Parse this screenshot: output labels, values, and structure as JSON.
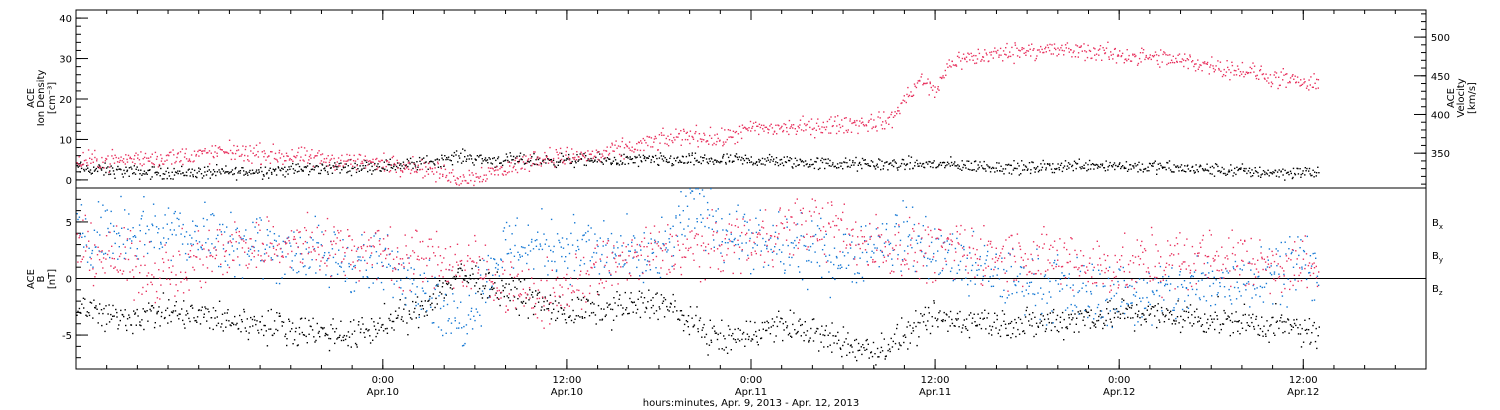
{
  "colors": {
    "black": "#000000",
    "pink": "#e8325f",
    "blue": "#1478d4"
  },
  "xaxis": {
    "start": "2013-04-09T04:00",
    "end": "2013-04-12T20:00",
    "ticks": [
      {
        "time": "2013-04-10T00:00",
        "label": "0:00",
        "date": "Apr.10"
      },
      {
        "time": "2013-04-10T12:00",
        "label": "12:00",
        "date": "Apr.10"
      },
      {
        "time": "2013-04-11T00:00",
        "label": "0:00",
        "date": "Apr.11"
      },
      {
        "time": "2013-04-11T12:00",
        "label": "12:00",
        "date": "Apr.11"
      },
      {
        "time": "2013-04-12T00:00",
        "label": "0:00",
        "date": "Apr.12"
      },
      {
        "time": "2013-04-12T12:00",
        "label": "12:00",
        "date": "Apr.12"
      }
    ],
    "caption": "hours:minutes, Apr.  9, 2013 - Apr. 12, 2013"
  },
  "chart_data": [
    {
      "type": "scatter",
      "panel": "top",
      "ylabel_lines": [
        "ACE",
        "Ion Density",
        "[cm⁻³]"
      ],
      "ylim": [
        -2,
        42
      ],
      "yticks": [
        0,
        10,
        20,
        30,
        40
      ],
      "y2label_lines": [
        "ACE",
        "Velocity",
        "[km/s]"
      ],
      "y2lim": [
        305,
        535
      ],
      "y2ticks": [
        350,
        400,
        450,
        500
      ],
      "series": [
        {
          "axis": "left",
          "color": "#000000",
          "keyframes": [
            [
              "2013-04-09T04:00",
              3
            ],
            [
              "2013-04-09T08:00",
              2
            ],
            [
              "2013-04-09T14:00",
              2
            ],
            [
              "2013-04-09T20:00",
              3
            ],
            [
              "2013-04-10T02:00",
              4
            ],
            [
              "2013-04-10T05:00",
              6
            ],
            [
              "2013-04-10T07:00",
              5
            ],
            [
              "2013-04-10T12:00",
              5
            ],
            [
              "2013-04-10T18:00",
              5
            ],
            [
              "2013-04-11T00:00",
              5
            ],
            [
              "2013-04-11T06:00",
              4
            ],
            [
              "2013-04-11T12:00",
              4
            ],
            [
              "2013-04-11T18:00",
              3
            ],
            [
              "2013-04-11T22:00",
              4
            ],
            [
              "2013-04-12T04:00",
              3
            ],
            [
              "2013-04-12T10:00",
              2
            ],
            [
              "2013-04-12T13:00",
              2
            ]
          ]
        },
        {
          "axis": "right",
          "color": "#e8325f",
          "keyframes": [
            [
              "2013-04-09T04:00",
              340
            ],
            [
              "2013-04-09T10:00",
              345
            ],
            [
              "2013-04-09T14:00",
              353
            ],
            [
              "2013-04-09T20:00",
              343
            ],
            [
              "2013-04-10T02:00",
              335
            ],
            [
              "2013-04-10T05:00",
              318
            ],
            [
              "2013-04-10T08:00",
              330
            ],
            [
              "2013-04-10T10:00",
              345
            ],
            [
              "2013-04-10T14:00",
              348
            ],
            [
              "2013-04-10T16:00",
              358
            ],
            [
              "2013-04-10T20:00",
              375
            ],
            [
              "2013-04-10T22:00",
              368
            ],
            [
              "2013-04-11T00:00",
              382
            ],
            [
              "2013-04-11T04:00",
              385
            ],
            [
              "2013-04-11T09:00",
              392
            ],
            [
              "2013-04-11T10:00",
              420
            ],
            [
              "2013-04-11T11:00",
              445
            ],
            [
              "2013-04-11T12:00",
              430
            ],
            [
              "2013-04-11T13:00",
              470
            ],
            [
              "2013-04-11T18:00",
              485
            ],
            [
              "2013-04-11T22:00",
              482
            ],
            [
              "2013-04-12T04:00",
              470
            ],
            [
              "2013-04-12T08:00",
              458
            ],
            [
              "2013-04-12T10:00",
              448
            ],
            [
              "2013-04-12T13:00",
              437
            ]
          ]
        }
      ]
    },
    {
      "type": "scatter",
      "panel": "bottom",
      "ylabel_lines": [
        "ACE",
        "B",
        "[nT]"
      ],
      "ylim": [
        -8,
        8
      ],
      "yticks": [
        -5,
        0,
        5
      ],
      "zero_line": true,
      "series": [
        {
          "name": "Bx",
          "color": "#000000",
          "keyframes": [
            [
              "2013-04-09T04:00",
              -2
            ],
            [
              "2013-04-09T06:00",
              -3.5
            ],
            [
              "2013-04-09T10:00",
              -3
            ],
            [
              "2013-04-09T16:00",
              -4
            ],
            [
              "2013-04-09T22:00",
              -5
            ],
            [
              "2013-04-10T02:00",
              -3
            ],
            [
              "2013-04-10T05:00",
              0.5
            ],
            [
              "2013-04-10T08:00",
              -1
            ],
            [
              "2013-04-10T12:00",
              -3
            ],
            [
              "2013-04-10T18:00",
              -2
            ],
            [
              "2013-04-10T22:00",
              -5.5
            ],
            [
              "2013-04-11T02:00",
              -4
            ],
            [
              "2013-04-11T08:00",
              -6.5
            ],
            [
              "2013-04-11T12:00",
              -3.5
            ],
            [
              "2013-04-11T18:00",
              -4
            ],
            [
              "2013-04-12T00:00",
              -3
            ],
            [
              "2013-04-12T06:00",
              -3.5
            ],
            [
              "2013-04-12T12:00",
              -4.5
            ],
            [
              "2013-04-12T13:00",
              -5
            ]
          ]
        },
        {
          "name": "By",
          "color": "#1478d4",
          "keyframes": [
            [
              "2013-04-09T04:00",
              4
            ],
            [
              "2013-04-09T10:00",
              4.5
            ],
            [
              "2013-04-09T16:00",
              3
            ],
            [
              "2013-04-09T22:00",
              1.5
            ],
            [
              "2013-04-10T02:00",
              0.5
            ],
            [
              "2013-04-10T05:00",
              -4
            ],
            [
              "2013-04-10T08:00",
              3
            ],
            [
              "2013-04-10T12:00",
              3
            ],
            [
              "2013-04-10T18:00",
              1.5
            ],
            [
              "2013-04-10T20:00",
              6.5
            ],
            [
              "2013-04-11T00:00",
              3
            ],
            [
              "2013-04-11T06:00",
              2
            ],
            [
              "2013-04-11T10:00",
              4
            ],
            [
              "2013-04-11T14:00",
              1
            ],
            [
              "2013-04-11T20:00",
              -1
            ],
            [
              "2013-04-12T02:00",
              -1.5
            ],
            [
              "2013-04-12T08:00",
              0
            ],
            [
              "2013-04-12T12:00",
              2
            ],
            [
              "2013-04-12T13:00",
              -0.5
            ]
          ]
        },
        {
          "name": "Bz",
          "color": "#e8325f",
          "keyframes": [
            [
              "2013-04-09T04:00",
              3
            ],
            [
              "2013-04-09T08:00",
              1
            ],
            [
              "2013-04-09T10:00",
              0.5
            ],
            [
              "2013-04-09T14:00",
              3
            ],
            [
              "2013-04-09T20:00",
              3
            ],
            [
              "2013-04-10T02:00",
              2
            ],
            [
              "2013-04-10T06:00",
              1
            ],
            [
              "2013-04-10T10:00",
              -2
            ],
            [
              "2013-04-10T16:00",
              2
            ],
            [
              "2013-04-10T22:00",
              3
            ],
            [
              "2013-04-11T04:00",
              5
            ],
            [
              "2013-04-11T08:00",
              3
            ],
            [
              "2013-04-11T12:00",
              2.5
            ],
            [
              "2013-04-11T18:00",
              2
            ],
            [
              "2013-04-12T00:00",
              1
            ],
            [
              "2013-04-12T06:00",
              2
            ],
            [
              "2013-04-12T12:00",
              1
            ],
            [
              "2013-04-12T13:00",
              1
            ]
          ]
        }
      ],
      "legend": [
        {
          "base": "B",
          "sub": "x",
          "color": "#000000"
        },
        {
          "base": "B",
          "sub": "y",
          "color": "#1478d4"
        },
        {
          "base": "B",
          "sub": "z",
          "color": "#e8325f"
        }
      ]
    }
  ]
}
